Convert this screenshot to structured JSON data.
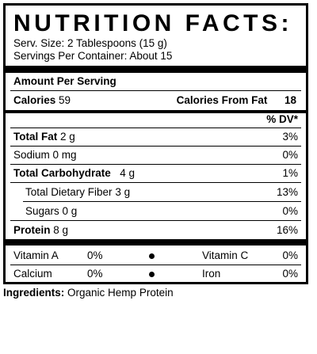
{
  "label": {
    "title": "NUTRITION FACTS:",
    "serving_size_label": "Serv. Size:",
    "serving_size_value": "2 Tablespoons (15 g)",
    "servings_label": "Servings Per Container:",
    "servings_value": "About 15",
    "amount_per_serving": "Amount Per Serving",
    "calories_label": "Calories",
    "calories_value": "59",
    "calories_fat_label": "Calories From Fat",
    "calories_fat_value": "18",
    "dv_header": "% DV*",
    "nutrients": [
      {
        "label": "Total Fat",
        "amount": "2 g",
        "dv": "3%"
      },
      {
        "label": "Sodium",
        "amount": "0 mg",
        "dv": "0%"
      },
      {
        "label": "Total Carbohydrate",
        "amount": "4 g",
        "dv": "1%"
      },
      {
        "label": "Total Dietary Fiber",
        "amount": "3 g",
        "dv": "13%"
      },
      {
        "label": "Sugars",
        "amount": "0 g",
        "dv": "0%"
      },
      {
        "label": "Protein",
        "amount": "8 g",
        "dv": "16%"
      }
    ],
    "vitamins": [
      {
        "left_label": "Vitamin A",
        "left_value": "0%",
        "right_label": "Vitamin C",
        "right_value": "0%"
      },
      {
        "left_label": "Calcium",
        "left_value": "0%",
        "right_label": "Iron",
        "right_value": "0%"
      }
    ]
  },
  "ingredients": {
    "label": "Ingredients:",
    "value": "Organic Hemp Protein"
  }
}
